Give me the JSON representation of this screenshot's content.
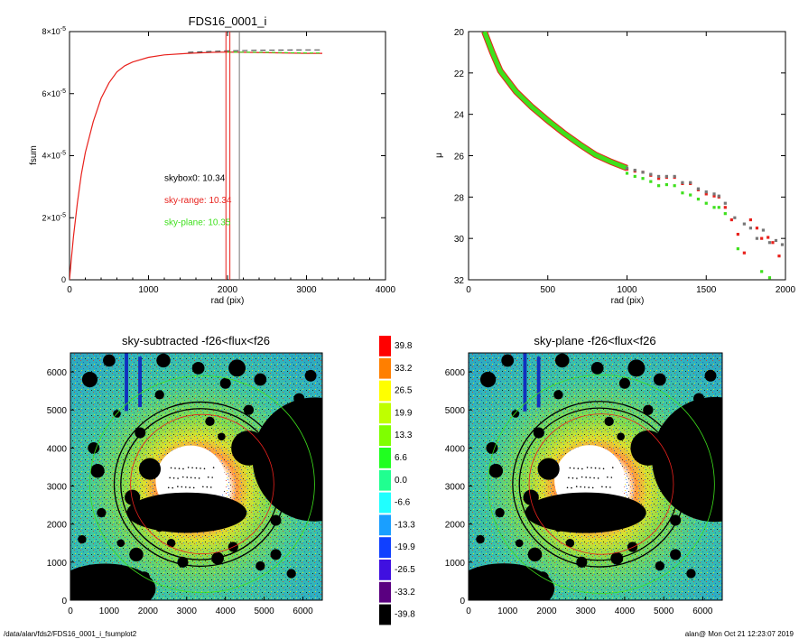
{
  "footer": {
    "path": "/data/alan/fds2/FDS16_0001_i_fsumplot2",
    "stamp": "alan@  Mon Oct 21 12:23:07 2019"
  },
  "colors": {
    "red": "#e8211c",
    "green": "#3ee01c",
    "black": "#000000",
    "grey": "#888888"
  },
  "colorbar": {
    "labels": [
      "39.8",
      "33.2",
      "26.5",
      "19.9",
      "13.3",
      "6.6",
      "0.0",
      "-6.6",
      "-13.3",
      "-19.9",
      "-26.5",
      "-33.2",
      "-39.8"
    ],
    "colors": [
      "#ff0000",
      "#ff7f00",
      "#ffff00",
      "#bfff00",
      "#7fff00",
      "#20ff20",
      "#20ff90",
      "#20ffff",
      "#1a9fff",
      "#1040ff",
      "#4010e0",
      "#5a0080",
      "#000000"
    ]
  },
  "chart_data": [
    {
      "type": "line",
      "title": "FDS16_0001_i",
      "xlabel": "rad (pix)",
      "ylabel": "fsum",
      "xlim": [
        0,
        4000
      ],
      "ylim": [
        0,
        8e-05
      ],
      "xticks": [
        "0",
        "1000",
        "2000",
        "3000",
        "4000"
      ],
      "yticks": [
        {
          "value": 0,
          "mant": "0",
          "exp": ""
        },
        {
          "value": 2e-05,
          "mant": "2×10",
          "exp": "-5"
        },
        {
          "value": 4e-05,
          "mant": "4×10",
          "exp": "-5"
        },
        {
          "value": 6e-05,
          "mant": "6×10",
          "exp": "-5"
        },
        {
          "value": 8e-05,
          "mant": "8×10",
          "exp": "-5"
        }
      ],
      "annotations": [
        {
          "text": "skybox0: 10.34",
          "color": "#000000",
          "x": 1200,
          "y": 3.19e-05
        },
        {
          "text": "sky-range: 10.34",
          "color": "#e8211c",
          "x": 1200,
          "y": 2.48e-05
        },
        {
          "text": "sky-plane: 10.35",
          "color": "#3ee01c",
          "x": 1200,
          "y": 1.76e-05
        }
      ],
      "series": [
        {
          "color": "#e8211c",
          "x": [
            0,
            20,
            50,
            100,
            150,
            200,
            300,
            400,
            500,
            600,
            700,
            800,
            1000,
            1200,
            1500,
            1800,
            2000,
            2500,
            3000,
            3200
          ],
          "y": [
            0,
            6e-06,
            1.4e-05,
            2.5e-05,
            3.4e-05,
            4.1e-05,
            5.1e-05,
            5.85e-05,
            6.35e-05,
            6.7e-05,
            6.9e-05,
            7.02e-05,
            7.17e-05,
            7.25e-05,
            7.3e-05,
            7.33e-05,
            7.34e-05,
            7.32e-05,
            7.3e-05,
            7.3e-05
          ]
        },
        {
          "color": "#3ee01c",
          "dash": "4 3",
          "x": [
            2000,
            2500,
            3000,
            3200
          ],
          "y": [
            7.34e-05,
            7.33e-05,
            7.31e-05,
            7.31e-05
          ]
        },
        {
          "color": "#555555",
          "dash": "6 4",
          "x": [
            1500,
            2000,
            2500,
            3000,
            3200
          ],
          "y": [
            7.33e-05,
            7.38e-05,
            7.4e-05,
            7.41e-05,
            7.41e-05
          ]
        }
      ],
      "vlines": [
        {
          "x": 1980,
          "color": "#e8211c"
        },
        {
          "x": 2030,
          "color": "#e8211c"
        },
        {
          "x": 2150,
          "color": "#777777"
        }
      ]
    },
    {
      "type": "scatter",
      "xlabel": "rad (pix)",
      "ylabel": "μ",
      "xlim": [
        0,
        2000
      ],
      "ylim": [
        32,
        20
      ],
      "xticks": [
        "0",
        "500",
        "1000",
        "1500",
        "2000"
      ],
      "yticks": [
        "20",
        "22",
        "24",
        "26",
        "28",
        "30",
        "32"
      ],
      "band": {
        "x": [
          100,
          150,
          200,
          300,
          400,
          500,
          600,
          700,
          800,
          900,
          1000
        ],
        "y": [
          20.0,
          21.0,
          21.9,
          22.9,
          23.65,
          24.3,
          24.9,
          25.45,
          25.95,
          26.3,
          26.6
        ]
      },
      "series": [
        {
          "name": "",
          "color": "#e8211c",
          "x": [
            1000,
            1050,
            1100,
            1150,
            1200,
            1250,
            1300,
            1350,
            1400,
            1450,
            1500,
            1550,
            1580,
            1620,
            1660,
            1700,
            1740,
            1780,
            1820,
            1850,
            1890,
            1920,
            1960
          ],
          "y": [
            26.65,
            26.75,
            26.8,
            26.95,
            27.1,
            27.05,
            27.05,
            27.35,
            27.35,
            27.65,
            27.85,
            27.95,
            28.0,
            28.5,
            29.1,
            29.8,
            30.7,
            29.1,
            29.5,
            30.0,
            29.95,
            30.2,
            30.85
          ]
        },
        {
          "name": "",
          "color": "#3ee01c",
          "x": [
            1000,
            1050,
            1100,
            1150,
            1200,
            1250,
            1300,
            1350,
            1400,
            1450,
            1500,
            1550,
            1580,
            1620,
            1700,
            1850,
            1900
          ],
          "y": [
            26.85,
            27.0,
            27.1,
            27.25,
            27.45,
            27.4,
            27.45,
            27.8,
            27.9,
            28.1,
            28.3,
            28.5,
            28.5,
            28.8,
            30.5,
            31.6,
            31.9
          ]
        },
        {
          "name": "",
          "color": "#777777",
          "x": [
            1000,
            1050,
            1100,
            1150,
            1200,
            1250,
            1300,
            1350,
            1400,
            1450,
            1500,
            1550,
            1580,
            1620,
            1680,
            1740,
            1780,
            1820,
            1860,
            1900,
            1940,
            1980
          ],
          "y": [
            26.6,
            26.7,
            26.8,
            26.9,
            27.0,
            27.0,
            27.0,
            27.3,
            27.3,
            27.6,
            27.75,
            27.85,
            27.95,
            28.3,
            29.0,
            29.3,
            29.5,
            30.0,
            29.6,
            30.2,
            30.1,
            30.3
          ]
        }
      ]
    },
    {
      "type": "heatmap",
      "title": "sky-subtracted -f26<flux<f26",
      "xlim": [
        0,
        6500
      ],
      "ylim": [
        0,
        6500
      ],
      "xticks": [
        "0",
        "1000",
        "2000",
        "3000",
        "4000",
        "5000",
        "6000"
      ],
      "yticks": [
        "0",
        "1000",
        "2000",
        "3000",
        "4000",
        "5000",
        "6000"
      ]
    },
    {
      "type": "heatmap",
      "title": "sky-plane -f26<flux<f26",
      "xlim": [
        0,
        6500
      ],
      "ylim": [
        0,
        6500
      ],
      "xticks": [
        "0",
        "1000",
        "2000",
        "3000",
        "4000",
        "5000",
        "6000"
      ],
      "yticks": [
        "0",
        "1000",
        "2000",
        "3000",
        "4000",
        "5000",
        "6000"
      ]
    }
  ]
}
